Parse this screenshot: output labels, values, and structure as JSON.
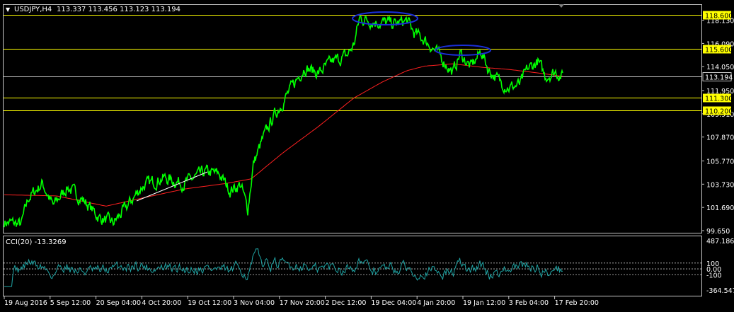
{
  "header": {
    "menu_glyph": "▼",
    "symbol": "USDJPY,H4",
    "ohlc": "113.337 113.456 113.123 113.194"
  },
  "indicator": {
    "label": "CCI(20) -13.3269"
  },
  "colors": {
    "background": "#000000",
    "price": "#00ff00",
    "moving_average": "#ff2020",
    "level_line": "#ffff00",
    "level_label_bg": "#ffff00",
    "cci": "#1fa3a3",
    "ellipse": "#1a2ed8",
    "trend_line": "#ffffff",
    "frame": "#c8c8c8"
  },
  "price_axis": {
    "ticks": [
      "118.130",
      "116.090",
      "114.050",
      "111.950",
      "109.910",
      "107.870",
      "105.770",
      "103.730",
      "101.690",
      "99.650"
    ],
    "tick_values": [
      118.13,
      116.09,
      114.05,
      111.95,
      109.91,
      107.87,
      105.77,
      103.73,
      101.69,
      99.65
    ]
  },
  "levels": [
    {
      "label": "118.600",
      "value": 118.6
    },
    {
      "label": "115.600",
      "value": 115.6
    },
    {
      "label": "113.194",
      "value": 113.194,
      "current": true
    },
    {
      "label": "111.300",
      "value": 111.3
    },
    {
      "label": "110.200",
      "value": 110.2
    }
  ],
  "cci_axis": {
    "ticks": [
      "487.1863",
      "100",
      "0.00",
      "-100",
      "-364.5479"
    ],
    "tick_values": [
      487.1863,
      100,
      0,
      -100,
      -364.5479
    ]
  },
  "time_axis": {
    "labels": [
      "19 Aug 2016",
      "5 Sep 12:00",
      "20 Sep 04:00",
      "4 Oct 20:00",
      "19 Oct 12:00",
      "3 Nov 04:00",
      "17 Nov 20:00",
      "2 Dec 12:00",
      "19 Dec 04:00",
      "4 Jan 20:00",
      "19 Jan 12:00",
      "3 Feb 04:00",
      "17 Feb 20:00"
    ]
  },
  "chart_data": {
    "type": "line",
    "symbol": "USDJPY",
    "timeframe": "H4",
    "x": [
      "19 Aug 2016",
      "5 Sep 12:00",
      "20 Sep 04:00",
      "4 Oct 20:00",
      "19 Oct 12:00",
      "3 Nov 04:00",
      "17 Nov 20:00",
      "2 Dec 12:00",
      "19 Dec 04:00",
      "4 Jan 20:00",
      "19 Jan 12:00",
      "3 Feb 04:00",
      "17 Feb 20:00"
    ],
    "series": [
      {
        "values": [
          100.3,
          103.5,
          100.5,
          102.5,
          104.0,
          103.0,
          110.5,
          113.5,
          117.8,
          116.5,
          114.0,
          112.0,
          113.194
        ]
      },
      {
        "values": [
          102.8,
          102.3,
          101.9,
          102.4,
          103.2,
          103.6,
          106.6,
          109.8,
          113.0,
          114.9,
          114.5,
          113.8,
          113.3
        ]
      }
    ],
    "cci": {
      "min": -364.5479,
      "max": 487.1863,
      "last": -13.3269,
      "levels": [
        100,
        0,
        -100
      ]
    },
    "ylim": [
      99.65,
      118.6
    ]
  }
}
